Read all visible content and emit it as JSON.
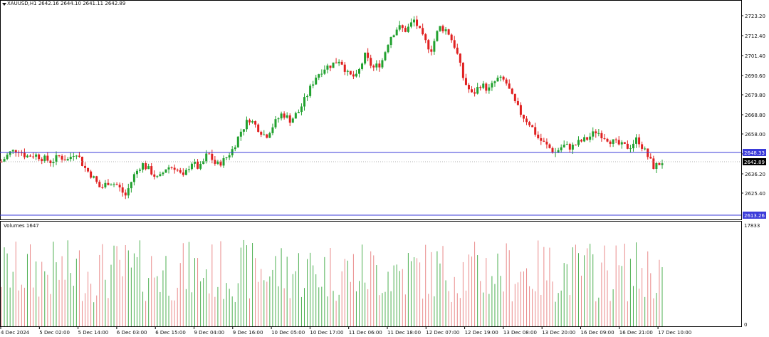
{
  "header": {
    "symbol_timeframe": "XAUUSD,H1",
    "ohlc": "2642.16 2644.10 2641.11 2642.89"
  },
  "volume_panel": {
    "title": "Volumes 1647",
    "max_label": "17833",
    "zero_label": "0"
  },
  "price_axis": {
    "ticks": [
      "2723.20",
      "2712.40",
      "2701.40",
      "2690.60",
      "2679.80",
      "2668.80",
      "2658.00",
      "2647.00",
      "2636.20",
      "2625.40"
    ]
  },
  "lines": [
    {
      "name": "upper-line",
      "value": "2648.33",
      "color": "#3b3bd9"
    },
    {
      "name": "lower-line",
      "value": "2613.26",
      "color": "#3b3bd9"
    }
  ],
  "current_price": {
    "value": "2642.89",
    "color": "#000000"
  },
  "time_axis": {
    "labels": [
      "4 Dec 2024",
      "5 Dec 02:00",
      "5 Dec 14:00",
      "6 Dec 03:00",
      "6 Dec 15:00",
      "9 Dec 04:00",
      "9 Dec 16:00",
      "10 Dec 05:00",
      "10 Dec 17:00",
      "11 Dec 06:00",
      "11 Dec 18:00",
      "12 Dec 07:00",
      "12 Dec 19:00",
      "13 Dec 08:00",
      "13 Dec 20:00",
      "16 Dec 09:00",
      "16 Dec 21:00",
      "17 Dec 10:00"
    ]
  },
  "colors": {
    "bull": "#21a12f",
    "bear": "#e02020",
    "bull_vol": "#4caf50",
    "bear_vol": "#e98a8a",
    "grid": "#000000"
  },
  "chart_data": {
    "type": "candlestick",
    "symbol": "XAUUSD",
    "timeframe": "H1",
    "x_range": [
      "4 Dec 2024",
      "17 Dec 10:00"
    ],
    "ylim": [
      2613.26,
      2727.0
    ],
    "key_levels": [
      2648.33,
      2613.26
    ],
    "price_path": [
      2643,
      2648,
      2650,
      2646,
      2647,
      2645,
      2643,
      2646,
      2644,
      2649,
      2640,
      2635,
      2628,
      2632,
      2630,
      2624,
      2635,
      2642,
      2638,
      2633,
      2640,
      2640,
      2634,
      2643,
      2639,
      2648,
      2641,
      2644,
      2650,
      2660,
      2667,
      2662,
      2657,
      2664,
      2670,
      2666,
      2671,
      2680,
      2690,
      2695,
      2697,
      2700,
      2691,
      2690,
      2702,
      2695,
      2698,
      2712,
      2718,
      2716,
      2722,
      2712,
      2705,
      2718,
      2716,
      2706,
      2688,
      2680,
      2686,
      2683,
      2689,
      2688,
      2677,
      2669,
      2664,
      2656,
      2652,
      2648,
      2652,
      2651,
      2654,
      2656,
      2660,
      2657,
      2654,
      2652,
      2651,
      2656,
      2648,
      2640,
      2643
    ],
    "volume_max": 17833
  }
}
